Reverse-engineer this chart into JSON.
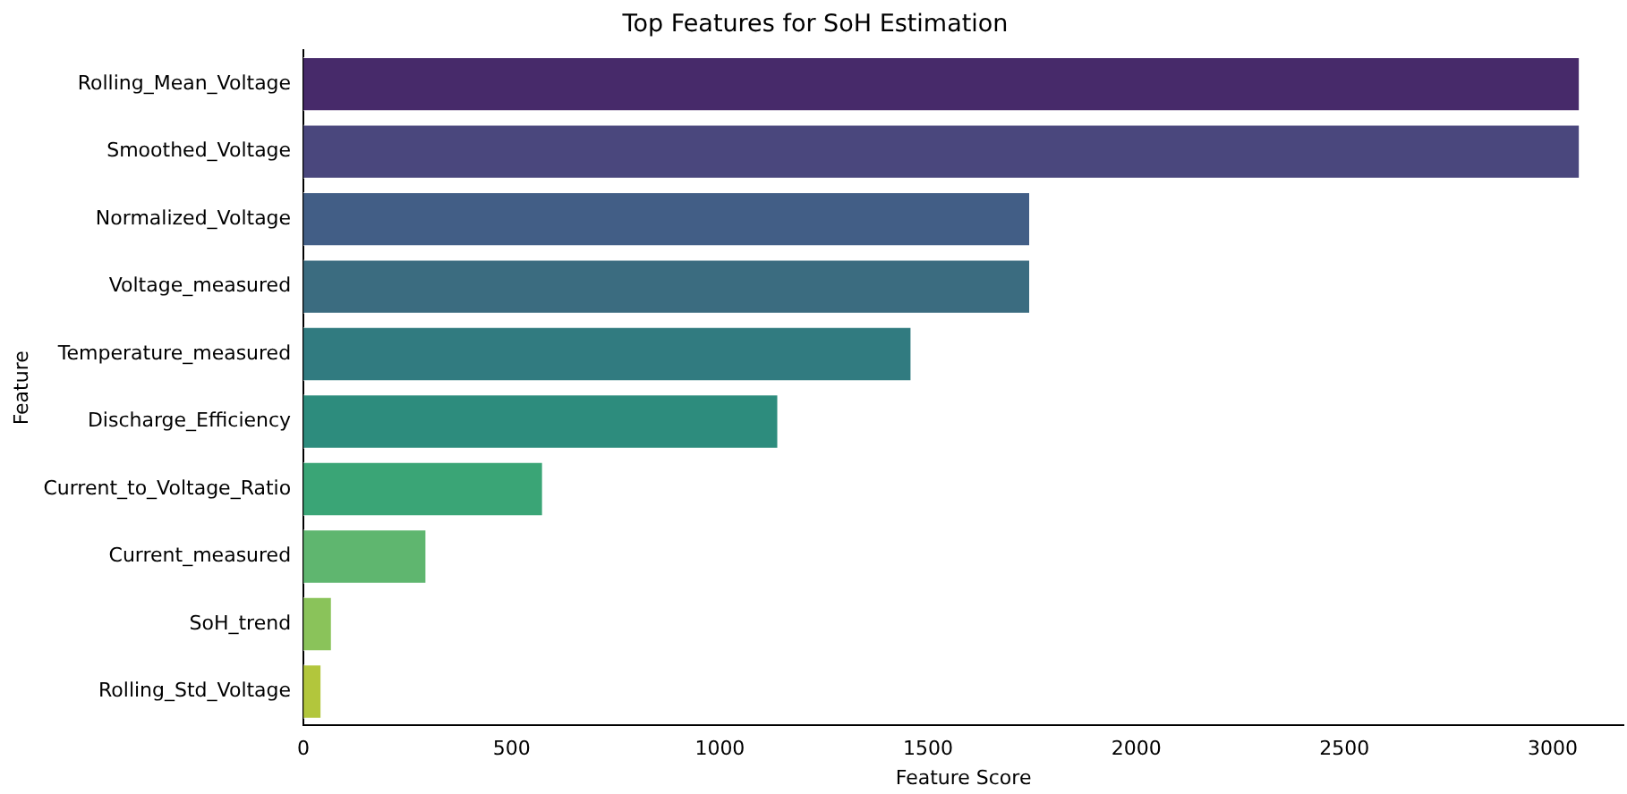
{
  "chart_data": {
    "type": "bar",
    "orientation": "horizontal",
    "title": "Top Features for SoH Estimation",
    "xlabel": "Feature Score",
    "ylabel": "Feature",
    "categories": [
      "Rolling_Mean_Voltage",
      "Smoothed_Voltage",
      "Normalized_Voltage",
      "Voltage_measured",
      "Temperature_measured",
      "Discharge_Efficiency",
      "Current_to_Voltage_Ratio",
      "Current_measured",
      "SoH_trend",
      "Rolling_Std_Voltage"
    ],
    "values": [
      3065,
      3065,
      1745,
      1745,
      1460,
      1140,
      575,
      295,
      68,
      43
    ],
    "colors": [
      "#472a6a",
      "#4a477d",
      "#425e86",
      "#3b6c80",
      "#317b80",
      "#2d8c7d",
      "#3aa576",
      "#5fb66f",
      "#8ac35a",
      "#b2c63c"
    ],
    "xlim": [
      0,
      3170
    ],
    "xticks": [
      0,
      500,
      1000,
      1500,
      2000,
      2500,
      3000
    ],
    "grid": false,
    "legend": false
  }
}
